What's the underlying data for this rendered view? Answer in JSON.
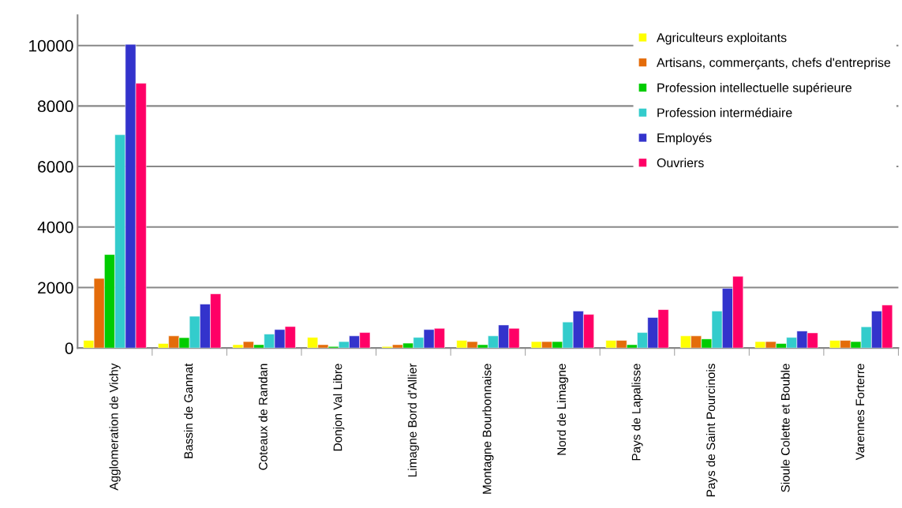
{
  "chart_data": {
    "type": "bar",
    "categories": [
      "Agglomeration de Vichy",
      "Bassin de Gannat",
      "Coteaux de Randan",
      "Donjon Val Libre",
      "Limagne Bord d'Allier",
      "Montagne Bourbonnaise",
      "Nord de Limagne",
      "Pays de Lapalisse",
      "Pays de Saint Pourcinois",
      "Sioule Colette et Bouble",
      "Varennes Forterre"
    ],
    "series": [
      {
        "name": "Agriculteurs exploitants",
        "color": "#ffff00",
        "values": [
          250,
          150,
          110,
          350,
          50,
          250,
          210,
          250,
          400,
          210,
          250
        ]
      },
      {
        "name": "Artisans, commerçants, chefs d'entreprise",
        "color": "#e46c0a",
        "values": [
          2300,
          400,
          210,
          110,
          110,
          210,
          210,
          250,
          400,
          210,
          250
        ]
      },
      {
        "name": "Profession intellectuelle supérieure",
        "color": "#00cc00",
        "values": [
          3090,
          340,
          110,
          50,
          160,
          110,
          210,
          110,
          300,
          150,
          210
        ]
      },
      {
        "name": "Profession intermédiaire",
        "color": "#33cccc",
        "values": [
          7050,
          1050,
          460,
          210,
          350,
          400,
          860,
          510,
          1220,
          350,
          700
        ]
      },
      {
        "name": "Employés",
        "color": "#3333cc",
        "values": [
          10040,
          1450,
          610,
          400,
          610,
          760,
          1220,
          1010,
          1970,
          560,
          1220
        ]
      },
      {
        "name": "Ouvriers",
        "color": "#ff0066",
        "values": [
          8750,
          1790,
          710,
          510,
          650,
          650,
          1110,
          1270,
          2370,
          500,
          1420
        ]
      }
    ],
    "ylim": [
      0,
      11000
    ],
    "yticks": [
      0,
      2000,
      4000,
      6000,
      8000,
      10000
    ],
    "grid": "y",
    "legend": "top right"
  }
}
